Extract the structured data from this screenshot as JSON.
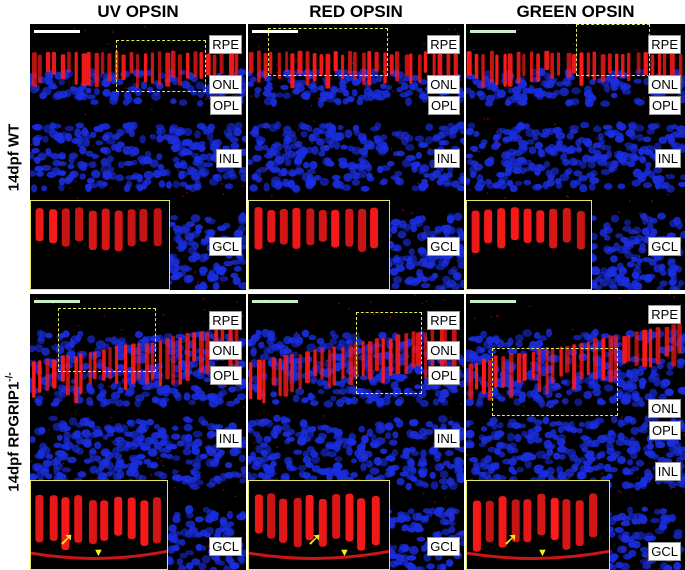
{
  "columns": [
    "UV OPSIN",
    "RED OPSIN",
    "GREEN OPSIN"
  ],
  "rows": [
    {
      "label": "14dpf WT",
      "sup": ""
    },
    {
      "label": "14dpf RPGRIP1",
      "sup": "-/-"
    }
  ],
  "layers": {
    "rpe": "RPE",
    "onl": "ONL",
    "opl": "OPL",
    "inl": "INL",
    "gcl": "GCL"
  },
  "colors": {
    "nuclei": "#1a2ee0",
    "opsin": "#ff1a1a",
    "roi_box": "#e6e65a",
    "marker": "#f3f01c"
  }
}
